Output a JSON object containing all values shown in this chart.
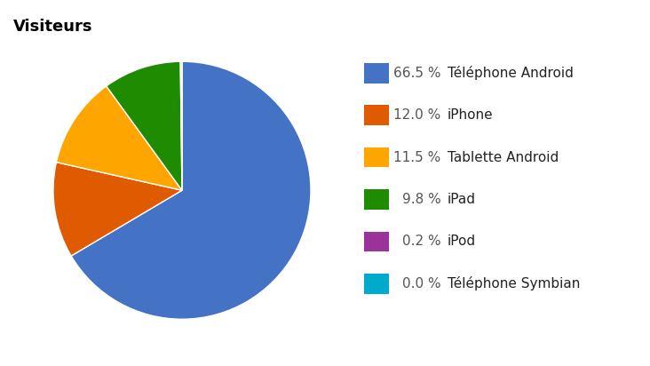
{
  "title": "Visiteurs",
  "labels": [
    "Téléphone Android",
    "iPhone",
    "Tablette Android",
    "iPad",
    "iPod",
    "Téléphone Symbian"
  ],
  "values": [
    66.5,
    12.0,
    11.5,
    9.8,
    0.2,
    0.0
  ],
  "percentages": [
    "66.5 %",
    "12.0 %",
    "11.5 %",
    "9.8 %",
    "0.2 %",
    "0.0 %"
  ],
  "colors": [
    "#4472C4",
    "#E05A00",
    "#FFA500",
    "#1E8B00",
    "#993399",
    "#00AACC"
  ],
  "background_color": "#ffffff",
  "title_fontsize": 13,
  "legend_fontsize": 11,
  "pct_color": "#555555",
  "label_color": "#222222"
}
